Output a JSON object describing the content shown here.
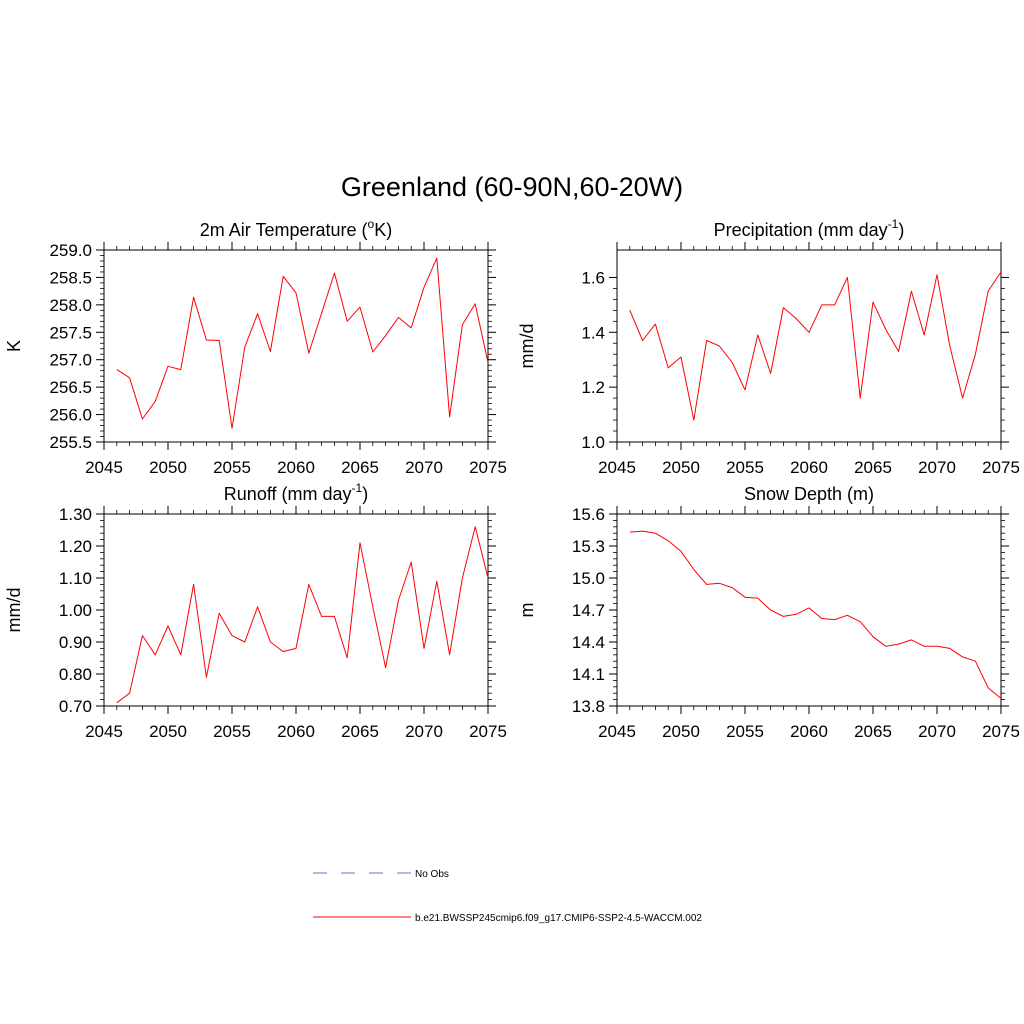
{
  "figure": {
    "title": "Greenland (60-90N,60-20W)"
  },
  "legend": {
    "items": [
      {
        "label": "No Obs",
        "color": "#8c8cd2",
        "style": "dashed"
      },
      {
        "label": "b.e21.BWSSP245cmip6.f09_g17.CMIP6-SSP2-4.5-WACCM.002",
        "color": "#ff0000",
        "style": "solid"
      }
    ]
  },
  "chart_data": [
    {
      "id": "temp",
      "type": "line",
      "title_main": "2m Air Temperature (",
      "title_sup": "o",
      "title_after": "K)",
      "xlabel": "",
      "ylabel": "K",
      "xlim": [
        2045,
        2075
      ],
      "ylim": [
        255.5,
        259.0
      ],
      "xticks": [
        2045,
        2050,
        2055,
        2060,
        2065,
        2070,
        2075
      ],
      "yticks": [
        255.5,
        256.0,
        256.5,
        257.0,
        257.5,
        258.0,
        258.5,
        259.0
      ],
      "ytick_labels": [
        "255.5",
        "256.0",
        "256.5",
        "257.0",
        "257.5",
        "258.0",
        "258.5",
        "259.0"
      ],
      "x": [
        2046,
        2047,
        2048,
        2049,
        2050,
        2051,
        2052,
        2053,
        2054,
        2055,
        2056,
        2057,
        2058,
        2059,
        2060,
        2061,
        2062,
        2063,
        2064,
        2065,
        2066,
        2067,
        2068,
        2069,
        2070,
        2071,
        2072,
        2073,
        2074,
        2075
      ],
      "series": [
        {
          "color": "#ff0000",
          "values": [
            256.82,
            256.67,
            255.92,
            256.24,
            256.88,
            256.82,
            258.14,
            257.36,
            257.35,
            255.75,
            257.23,
            257.84,
            257.15,
            258.52,
            258.22,
            257.12,
            257.85,
            258.58,
            257.7,
            257.96,
            257.14,
            257.44,
            257.77,
            257.58,
            258.32,
            258.85,
            255.96,
            257.64,
            258.02,
            256.95
          ]
        }
      ]
    },
    {
      "id": "precip",
      "type": "line",
      "title_main": "Precipitation (mm day",
      "title_sup": "-1",
      "title_after": ")",
      "xlabel": "",
      "ylabel": "mm/d",
      "xlim": [
        2045,
        2075
      ],
      "ylim": [
        1.0,
        1.7
      ],
      "xticks": [
        2045,
        2050,
        2055,
        2060,
        2065,
        2070,
        2075
      ],
      "yticks": [
        1.0,
        1.2,
        1.4,
        1.6
      ],
      "ytick_labels": [
        "1.0",
        "1.2",
        "1.4",
        "1.6"
      ],
      "x": [
        2046,
        2047,
        2048,
        2049,
        2050,
        2051,
        2052,
        2053,
        2054,
        2055,
        2056,
        2057,
        2058,
        2059,
        2060,
        2061,
        2062,
        2063,
        2064,
        2065,
        2066,
        2067,
        2068,
        2069,
        2070,
        2071,
        2072,
        2073,
        2074,
        2075
      ],
      "series": [
        {
          "color": "#ff0000",
          "values": [
            1.48,
            1.37,
            1.43,
            1.27,
            1.31,
            1.08,
            1.37,
            1.35,
            1.29,
            1.19,
            1.39,
            1.25,
            1.49,
            1.45,
            1.4,
            1.5,
            1.5,
            1.6,
            1.16,
            1.51,
            1.41,
            1.33,
            1.55,
            1.39,
            1.61,
            1.35,
            1.16,
            1.32,
            1.55,
            1.62
          ]
        }
      ]
    },
    {
      "id": "runoff",
      "type": "line",
      "title_main": "Runoff (mm day",
      "title_sup": "-1",
      "title_after": ")",
      "xlabel": "",
      "ylabel": "mm/d",
      "xlim": [
        2045,
        2075
      ],
      "ylim": [
        0.7,
        1.3
      ],
      "xticks": [
        2045,
        2050,
        2055,
        2060,
        2065,
        2070,
        2075
      ],
      "yticks": [
        0.7,
        0.8,
        0.9,
        1.0,
        1.1,
        1.2,
        1.3
      ],
      "ytick_labels": [
        "0.70",
        "0.80",
        "0.90",
        "1.00",
        "1.10",
        "1.20",
        "1.30"
      ],
      "x": [
        2046,
        2047,
        2048,
        2049,
        2050,
        2051,
        2052,
        2053,
        2054,
        2055,
        2056,
        2057,
        2058,
        2059,
        2060,
        2061,
        2062,
        2063,
        2064,
        2065,
        2066,
        2067,
        2068,
        2069,
        2070,
        2071,
        2072,
        2073,
        2074,
        2075
      ],
      "series": [
        {
          "color": "#ff0000",
          "values": [
            0.71,
            0.74,
            0.92,
            0.86,
            0.95,
            0.86,
            1.08,
            0.79,
            0.99,
            0.92,
            0.9,
            1.01,
            0.9,
            0.87,
            0.88,
            1.08,
            0.98,
            0.98,
            0.85,
            1.21,
            1.01,
            0.82,
            1.03,
            1.15,
            0.88,
            1.09,
            0.86,
            1.1,
            1.26,
            1.1
          ]
        }
      ]
    },
    {
      "id": "snow",
      "type": "line",
      "title_main": "Snow Depth (m)",
      "title_sup": "",
      "title_after": "",
      "xlabel": "",
      "ylabel": "m",
      "xlim": [
        2045,
        2075
      ],
      "ylim": [
        13.8,
        15.6
      ],
      "xticks": [
        2045,
        2050,
        2055,
        2060,
        2065,
        2070,
        2075
      ],
      "yticks": [
        13.8,
        14.1,
        14.4,
        14.7,
        15.0,
        15.3,
        15.6
      ],
      "ytick_labels": [
        "13.8",
        "14.1",
        "14.4",
        "14.7",
        "15.0",
        "15.3",
        "15.6"
      ],
      "x": [
        2046,
        2047,
        2048,
        2049,
        2050,
        2051,
        2052,
        2053,
        2054,
        2055,
        2056,
        2057,
        2058,
        2059,
        2060,
        2061,
        2062,
        2063,
        2064,
        2065,
        2066,
        2067,
        2068,
        2069,
        2070,
        2071,
        2072,
        2073,
        2074,
        2075
      ],
      "series": [
        {
          "color": "#ff0000",
          "values": [
            15.43,
            15.44,
            15.42,
            15.35,
            15.25,
            15.08,
            14.94,
            14.95,
            14.91,
            14.82,
            14.81,
            14.7,
            14.64,
            14.66,
            14.72,
            14.62,
            14.61,
            14.65,
            14.59,
            14.45,
            14.36,
            14.38,
            14.42,
            14.36,
            14.36,
            14.34,
            14.26,
            14.22,
            13.97,
            13.87
          ]
        }
      ]
    }
  ]
}
